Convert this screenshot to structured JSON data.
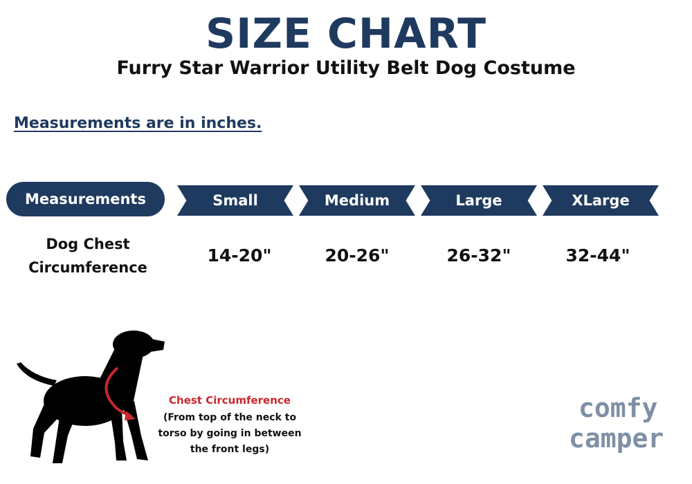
{
  "header": {
    "title": "SIZE CHART",
    "subtitle": "Furry Star Warrior Utility Belt Dog Costume"
  },
  "units_note": "Measurements are in inches.",
  "table": {
    "header_label": "Measurements",
    "sizes": [
      "Small",
      "Medium",
      "Large",
      "XLarge"
    ],
    "rows": [
      {
        "label_lines": [
          "Dog Chest",
          "Circumference"
        ],
        "values": [
          "14-20\"",
          "20-26\"",
          "26-32\"",
          "32-44\""
        ]
      }
    ]
  },
  "illustration": {
    "icon": "dog-silhouette-icon",
    "caption_title": "Chest Circumference",
    "caption_lines": [
      "(From top of the neck to",
      "torso by going in between",
      "the front legs)"
    ]
  },
  "logo": {
    "lines": [
      "comfy",
      "camper"
    ]
  },
  "colors": {
    "navy": "#1f3a5f",
    "red": "#c8282d",
    "logo_gray": "#7f8fa6"
  }
}
